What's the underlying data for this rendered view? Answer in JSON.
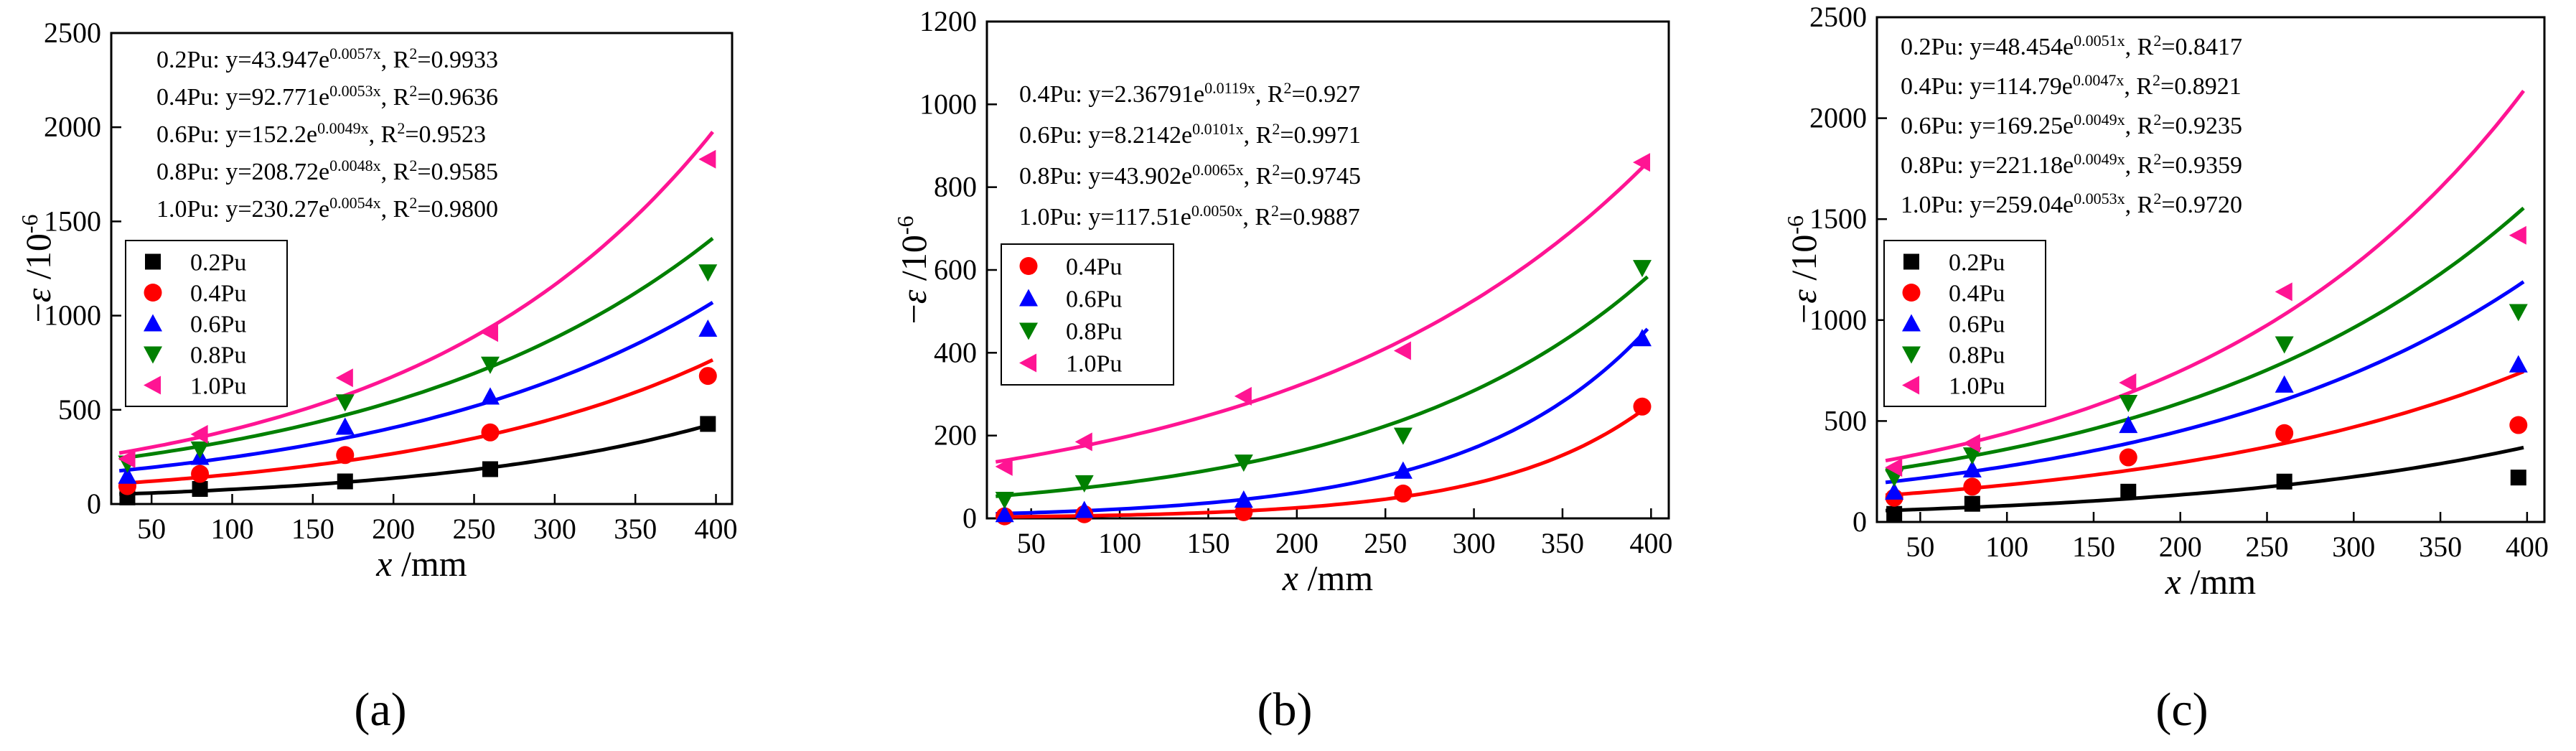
{
  "colors": {
    "0.2Pu": "#000000",
    "0.4Pu": "#ff0000",
    "0.6Pu": "#0000ff",
    "0.8Pu": "#008000",
    "1.0Pu": "#ff1493"
  },
  "markers": {
    "0.2Pu": "square",
    "0.4Pu": "circle",
    "0.6Pu": "triangle-up",
    "0.8Pu": "triangle-down",
    "1.0Pu": "triangle-left"
  },
  "chart_data": [
    {
      "type": "scatter",
      "panel_label": "(a)",
      "xlabel_var": "x",
      "xlabel_unit": " /mm",
      "ylabel_prefix": "−",
      "ylabel_var": "ε",
      "ylabel_unit": " /10",
      "ylabel_exp": "-6",
      "xlim": [
        25,
        410
      ],
      "ylim": [
        0,
        2500
      ],
      "xticks": [
        50,
        100,
        150,
        200,
        250,
        300,
        350,
        400
      ],
      "yticks": [
        0,
        500,
        1000,
        1500,
        2000,
        2500
      ],
      "x": [
        35,
        80,
        170,
        260,
        395
      ],
      "series": [
        {
          "name": "0.2Pu",
          "values": [
            35,
            80,
            120,
            185,
            425
          ],
          "fit_a": 43.947,
          "fit_b": 0.0057
        },
        {
          "name": "0.4Pu",
          "values": [
            95,
            160,
            260,
            380,
            680
          ],
          "fit_a": 92.771,
          "fit_b": 0.0053
        },
        {
          "name": "0.6Pu",
          "values": [
            150,
            250,
            410,
            570,
            930
          ],
          "fit_a": 152.2,
          "fit_b": 0.0049
        },
        {
          "name": "0.8Pu",
          "values": [
            215,
            290,
            540,
            740,
            1230
          ],
          "fit_a": 208.72,
          "fit_b": 0.0048
        },
        {
          "name": "1.0Pu",
          "values": [
            240,
            370,
            670,
            910,
            1830
          ],
          "fit_a": 230.27,
          "fit_b": 0.0054
        }
      ],
      "equations": [
        {
          "prefix": "0.2Pu:  y=43.947e",
          "exp": "0.0057x",
          "suffix": ", R",
          "r2": "=0.9933"
        },
        {
          "prefix": "0.4Pu:  y=92.771e",
          "exp": "0.0053x",
          "suffix": ", R",
          "r2": "=0.9636"
        },
        {
          "prefix": "0.6Pu:  y=152.2e",
          "exp": "0.0049x",
          "suffix": ", R",
          "r2": "=0.9523"
        },
        {
          "prefix": "0.8Pu:  y=208.72e",
          "exp": "0.0048x",
          "suffix": ", R",
          "r2": "=0.9585"
        },
        {
          "prefix": "1.0Pu:  y=230.27e",
          "exp": "0.0054x",
          "suffix": ", R",
          "r2": "=0.9800"
        }
      ],
      "legend": [
        "0.2Pu",
        "0.4Pu",
        "0.6Pu",
        "0.8Pu",
        "1.0Pu"
      ]
    },
    {
      "type": "scatter",
      "panel_label": "(b)",
      "xlabel_var": "x",
      "xlabel_unit": " /mm",
      "ylabel_prefix": "−",
      "ylabel_var": "ε",
      "ylabel_unit": " /10",
      "ylabel_exp": "-6",
      "xlim": [
        25,
        410
      ],
      "ylim": [
        0,
        1200
      ],
      "xticks": [
        50,
        100,
        150,
        200,
        250,
        300,
        350,
        400
      ],
      "yticks": [
        0,
        200,
        400,
        600,
        800,
        1000,
        1200
      ],
      "x": [
        35,
        80,
        170,
        260,
        395
      ],
      "series": [
        {
          "name": "0.4Pu",
          "values": [
            5,
            10,
            15,
            60,
            270
          ],
          "fit_a": 2.36791,
          "fit_b": 0.0119
        },
        {
          "name": "0.6Pu",
          "values": [
            10,
            20,
            45,
            115,
            435
          ],
          "fit_a": 8.2142,
          "fit_b": 0.0101
        },
        {
          "name": "0.8Pu",
          "values": [
            45,
            85,
            135,
            200,
            605
          ],
          "fit_a": 43.902,
          "fit_b": 0.0065
        },
        {
          "name": "1.0Pu",
          "values": [
            125,
            185,
            295,
            405,
            860
          ],
          "fit_a": 117.51,
          "fit_b": 0.005
        }
      ],
      "equations": [
        {
          "prefix": "0.4Pu:  y=2.36791e",
          "exp": "0.0119x",
          "suffix": ", R",
          "r2": "=0.927"
        },
        {
          "prefix": "0.6Pu:  y=8.2142e",
          "exp": "0.0101x",
          "suffix": ", R",
          "r2": "=0.9971"
        },
        {
          "prefix": "0.8Pu:  y=43.902e",
          "exp": "0.0065x",
          "suffix": ", R",
          "r2": "=0.9745"
        },
        {
          "prefix": "1.0Pu:  y=117.51e",
          "exp": "0.0050x",
          "suffix": ", R",
          "r2": "=0.9887"
        }
      ],
      "legend": [
        "0.4Pu",
        "0.6Pu",
        "0.8Pu",
        "1.0Pu"
      ]
    },
    {
      "type": "scatter",
      "panel_label": "(c)",
      "xlabel_var": "x",
      "xlabel_unit": " /mm",
      "ylabel_prefix": "−",
      "ylabel_var": "ε",
      "ylabel_unit": " /10",
      "ylabel_exp": "-6",
      "xlim": [
        25,
        410
      ],
      "ylim": [
        0,
        2500
      ],
      "xticks": [
        50,
        100,
        150,
        200,
        250,
        300,
        350,
        400
      ],
      "yticks": [
        0,
        500,
        1000,
        1500,
        2000,
        2500
      ],
      "x": [
        35,
        80,
        170,
        260,
        395
      ],
      "series": [
        {
          "name": "0.2Pu",
          "values": [
            40,
            90,
            150,
            200,
            220
          ],
          "fit_a": 48.454,
          "fit_b": 0.0051
        },
        {
          "name": "0.4Pu",
          "values": [
            120,
            175,
            320,
            440,
            480
          ],
          "fit_a": 114.79,
          "fit_b": 0.0047
        },
        {
          "name": "0.6Pu",
          "values": [
            150,
            260,
            480,
            680,
            780
          ],
          "fit_a": 169.25,
          "fit_b": 0.0049
        },
        {
          "name": "0.8Pu",
          "values": [
            220,
            330,
            590,
            880,
            1040
          ],
          "fit_a": 221.18,
          "fit_b": 0.0049
        },
        {
          "name": "1.0Pu",
          "values": [
            270,
            390,
            690,
            1140,
            1420
          ],
          "fit_a": 259.04,
          "fit_b": 0.0053
        }
      ],
      "equations": [
        {
          "prefix": "0.2Pu:  y=48.454e",
          "exp": "0.0051x",
          "suffix": ", R",
          "r2": "=0.8417"
        },
        {
          "prefix": "0.4Pu:  y=114.79e",
          "exp": "0.0047x",
          "suffix": ", R",
          "r2": "=0.8921"
        },
        {
          "prefix": "0.6Pu:  y=169.25e",
          "exp": "0.0049x",
          "suffix": ", R",
          "r2": "=0.9235"
        },
        {
          "prefix": "0.8Pu:  y=221.18e",
          "exp": "0.0049x",
          "suffix": ", R",
          "r2": "=0.9359"
        },
        {
          "prefix": "1.0Pu:  y=259.04e",
          "exp": "0.0053x",
          "suffix": ", R",
          "r2": "=0.9720"
        }
      ],
      "legend": [
        "0.2Pu",
        "0.4Pu",
        "0.6Pu",
        "0.8Pu",
        "1.0Pu"
      ]
    }
  ]
}
